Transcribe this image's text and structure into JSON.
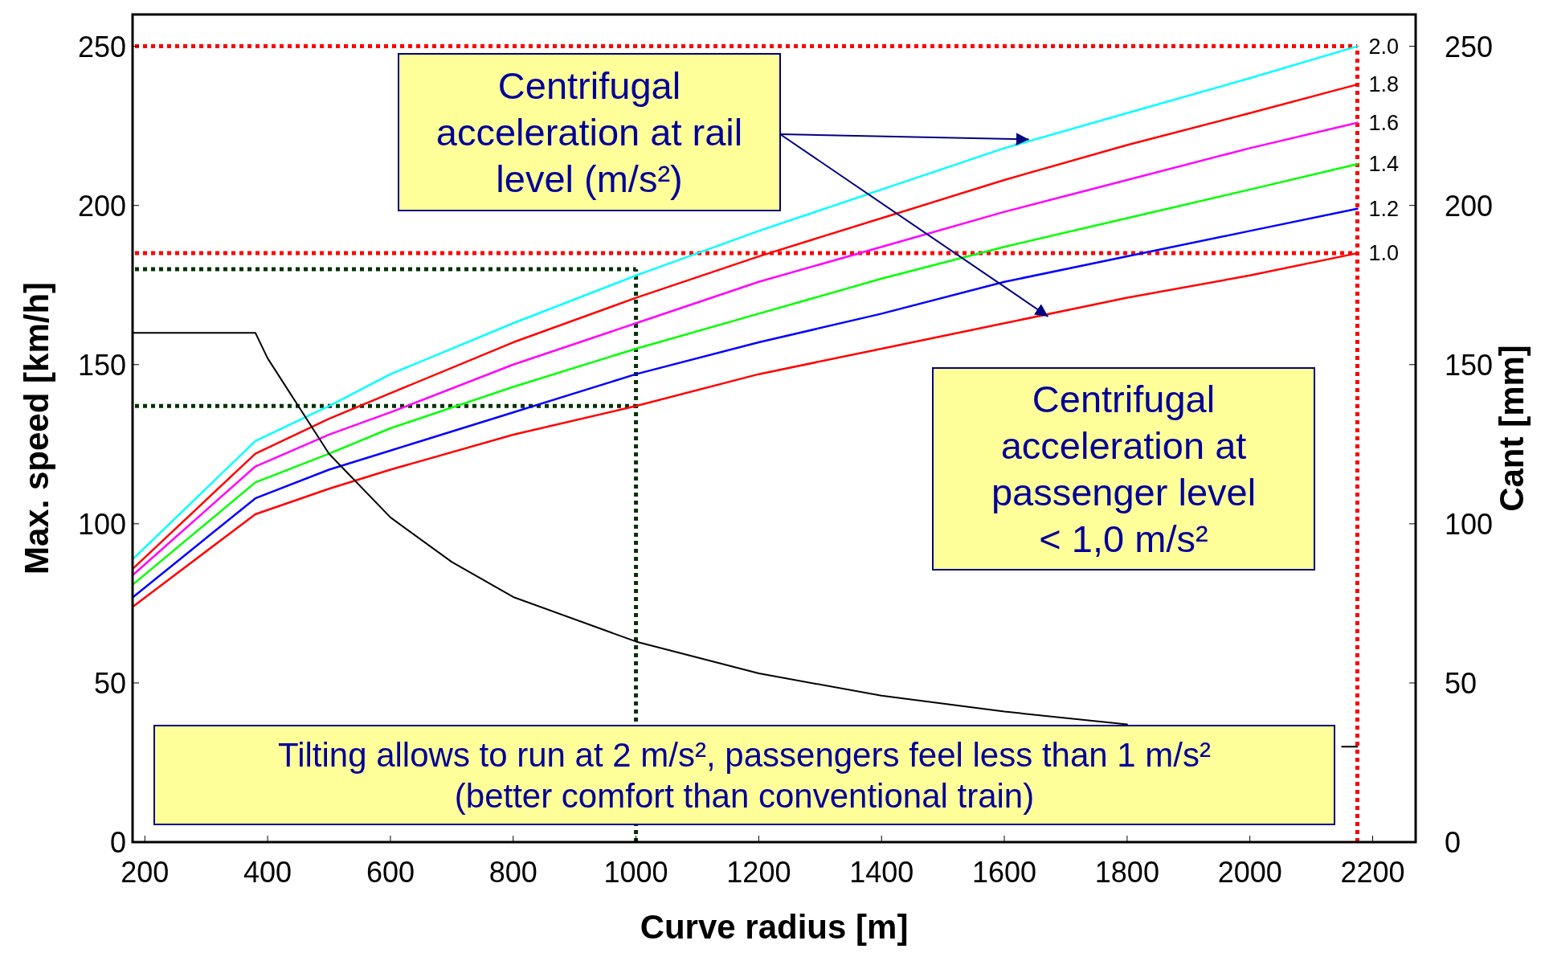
{
  "chart_data": {
    "type": "line",
    "xlabel": "Curve radius [m]",
    "ylabel": "Max. speed [km/h]",
    "y2label": "Cant [mm]",
    "x": [
      181,
      380,
      500,
      600,
      800,
      1000,
      1200,
      1400,
      1600,
      1800,
      2000,
      2175
    ],
    "xlim": [
      180,
      2270
    ],
    "xticks": [
      200,
      400,
      600,
      800,
      1000,
      1200,
      1400,
      1600,
      1800,
      2000,
      2200
    ],
    "ylim": [
      0,
      260
    ],
    "yticks": [
      0,
      50,
      100,
      150,
      200,
      250
    ],
    "y2lim": [
      0,
      260
    ],
    "y2ticks": [
      0,
      50,
      100,
      150,
      200,
      250
    ],
    "grid": false,
    "legend": false,
    "marker": "none",
    "line_style": "solid",
    "series": [
      {
        "name": "2.0",
        "color": "#00ffff",
        "values": [
          89,
          126,
          137,
          147,
          163,
          178,
          192,
          205,
          218,
          229,
          240,
          250
        ]
      },
      {
        "name": "1.8",
        "color": "#ff0000",
        "values": [
          86,
          122,
          133,
          141,
          157,
          171,
          184,
          196,
          208,
          219,
          229,
          238
        ]
      },
      {
        "name": "1.6",
        "color": "#ff00ff",
        "values": [
          84,
          118,
          128,
          135,
          150,
          163,
          176,
          187,
          198,
          208,
          218,
          226
        ]
      },
      {
        "name": "1.4",
        "color": "#00ff00",
        "values": [
          81,
          113,
          122,
          130,
          143,
          155,
          166,
          177,
          187,
          196,
          205,
          213
        ]
      },
      {
        "name": "1.2",
        "color": "#0000ff",
        "values": [
          77,
          108,
          117,
          123,
          135,
          147,
          157,
          166,
          176,
          184,
          192,
          199
        ]
      },
      {
        "name": "1.0",
        "color": "#ff0000",
        "values": [
          74,
          103,
          111,
          117,
          128,
          137,
          147,
          155,
          163,
          171,
          178,
          185
        ]
      },
      {
        "color": "#000000",
        "axis": "y2",
        "x": [
          181,
          380,
          400,
          500,
          600,
          700,
          800,
          1000,
          1200,
          1400,
          1600,
          1800,
          2000,
          2150,
          2175
        ],
        "values": [
          160,
          160,
          152,
          122,
          102,
          88,
          77,
          63,
          53,
          46,
          41,
          37,
          null,
          30,
          30
        ]
      }
    ],
    "ref_lines": [
      {
        "axis": "y",
        "value": 250,
        "color": "#ff0000",
        "line_style": "dotted"
      },
      {
        "axis": "y",
        "value": 185,
        "color": "#ff0000",
        "line_style": "dotted"
      },
      {
        "axis": "x",
        "value": 2175,
        "color": "#ff0000",
        "line_style": "dotted"
      },
      {
        "axis": "y",
        "value": 180,
        "color": "#003300",
        "line_style": "dotted"
      },
      {
        "axis": "y",
        "value": 137,
        "color": "#003300",
        "line_style": "dotted"
      },
      {
        "axis": "x",
        "value": 1000,
        "color": "#003300",
        "line_style": "dotted"
      }
    ],
    "annotations": [
      {
        "text": "Centrifugal\nacceleration at rail\nlevel (m/s²)",
        "x": 1640,
        "y": 220
      },
      "Centrifugal\nacceleration at\npassenger level\n< 1,0 m/s²",
      "Tilting allows to run at 2 m/s², passengers feel less than 1 m/s²\n(better comfort than conventional train)"
    ]
  }
}
